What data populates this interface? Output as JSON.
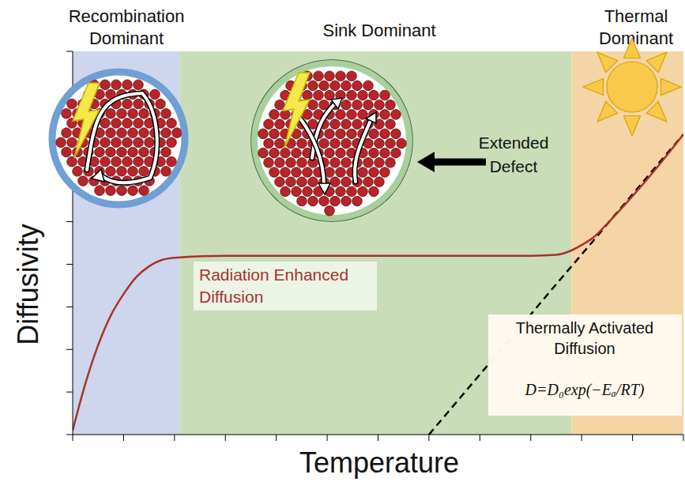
{
  "chart_data": {
    "type": "line",
    "x_label": "Temperature",
    "y_label": "Diffusivity",
    "x": [
      0,
      0.25,
      0.5,
      0.75,
      1,
      1.25,
      1.5,
      1.75,
      2,
      3,
      4,
      5,
      6,
      7,
      8,
      9,
      9.5,
      9.75,
      10,
      10.25,
      10.5,
      11,
      11.5,
      12
    ],
    "series": [
      {
        "name": "Radiation Enhanced Diffusion",
        "color": "#a8322d",
        "line_style": "solid",
        "values": [
          0.1,
          1.2,
          2.1,
          2.8,
          3.3,
          3.7,
          3.95,
          4.1,
          4.15,
          4.2,
          4.2,
          4.2,
          4.2,
          4.2,
          4.2,
          4.2,
          4.22,
          4.3,
          4.45,
          4.65,
          4.95,
          5.6,
          6.3,
          7.05
        ]
      },
      {
        "name": "Thermally Activated Diffusion",
        "color": "#000000",
        "line_style": "dashed",
        "values": [
          null,
          null,
          null,
          null,
          null,
          null,
          null,
          null,
          null,
          null,
          null,
          null,
          null,
          0,
          1.41,
          2.82,
          3.53,
          3.88,
          4.23,
          4.58,
          4.94,
          5.64,
          6.35,
          7.05
        ]
      }
    ],
    "regions": [
      {
        "label": "Recombination Dominant",
        "from": 0,
        "to": 2.1,
        "color": "#cdd6ec"
      },
      {
        "label": "Sink Dominant",
        "from": 2.1,
        "to": 9.8,
        "color": "#c8ddb8"
      },
      {
        "label": "Thermal Dominant",
        "from": 9.8,
        "to": 12,
        "color": "#f5d4a6"
      }
    ],
    "annotations": {
      "formula": "D=D₀exp(−Eₐ/RT)",
      "extended_defect": "Extended Defect"
    },
    "xlim": [
      0,
      12
    ],
    "ylim": [
      0,
      9
    ],
    "xticks": [
      0,
      1,
      2,
      3,
      4,
      5,
      6,
      7,
      8,
      9,
      10,
      11,
      12
    ],
    "yticks": [
      0,
      1,
      2,
      3,
      4,
      5,
      6,
      7,
      8,
      9
    ],
    "tick_labels": false,
    "grid": false
  }
}
